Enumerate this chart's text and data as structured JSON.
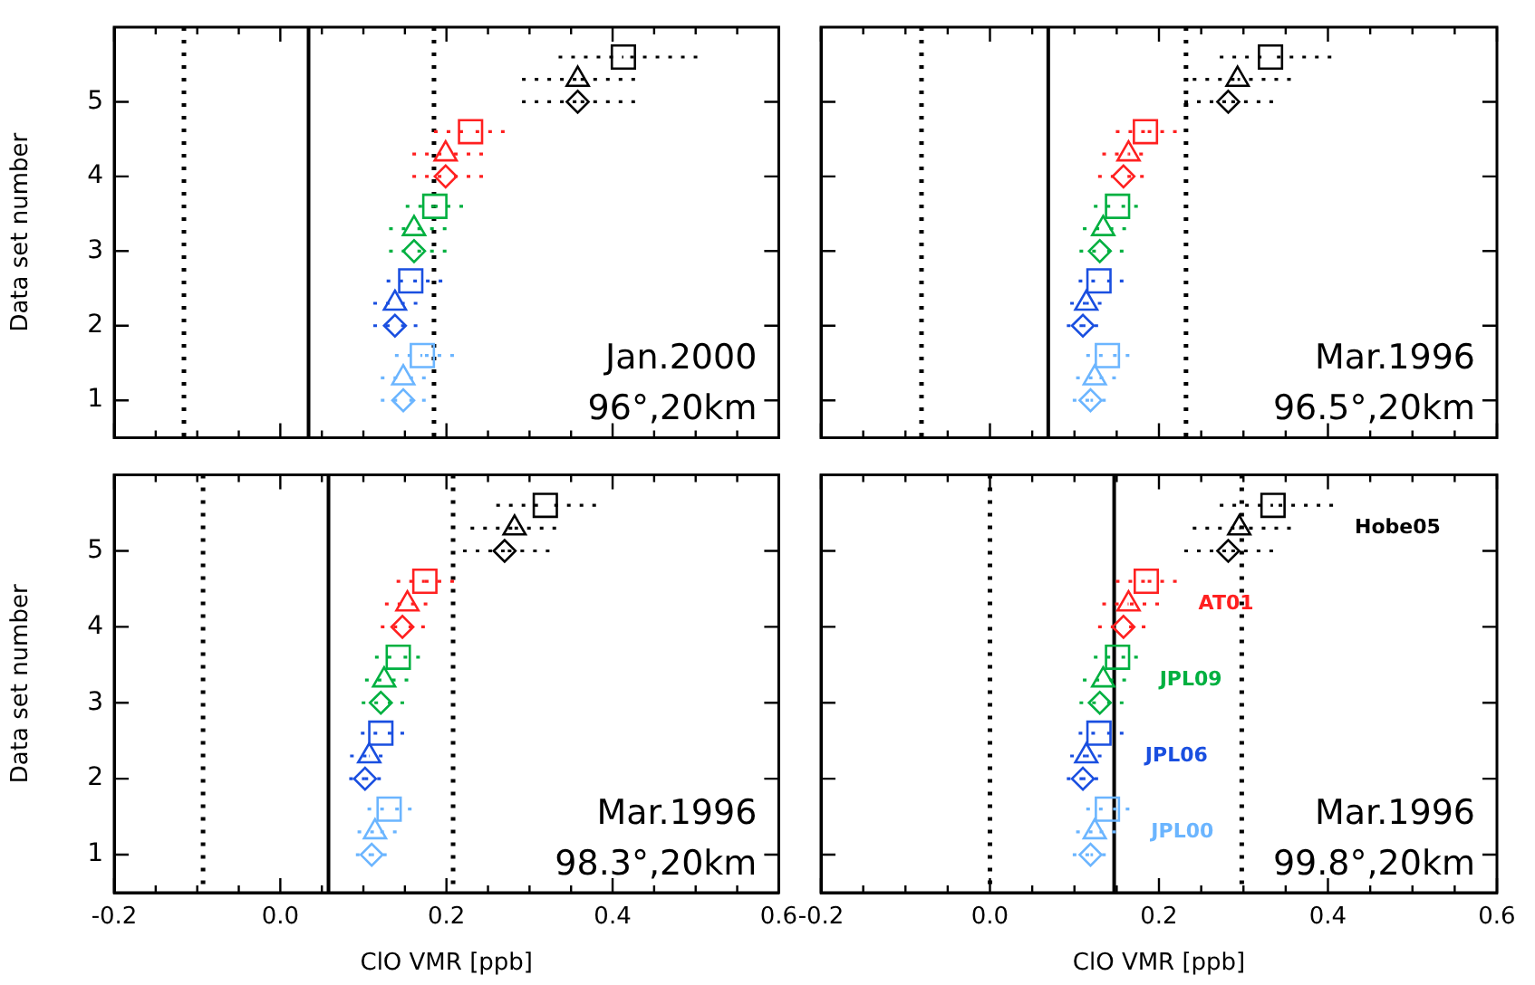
{
  "chart_data": [
    {
      "type": "scatter",
      "ylabel": "Data set number",
      "annotations": [
        "Jan.2000",
        "96°,20km"
      ],
      "tick_labels": "y",
      "xlim": [
        -0.2,
        0.6
      ],
      "xticks": [
        -0.2,
        {
          "value": -0.15,
          "label": null
        },
        {
          "value": -0.1,
          "label": null
        },
        {
          "value": -0.05,
          "label": null
        },
        0,
        {
          "value": 0.05,
          "label": null
        },
        {
          "value": 0.1,
          "label": null
        },
        {
          "value": 0.15,
          "label": null
        },
        0.2,
        {
          "value": 0.25,
          "label": null
        },
        {
          "value": 0.3,
          "label": null
        },
        {
          "value": 0.35,
          "label": null
        },
        0.4,
        {
          "value": 0.45,
          "label": null
        },
        {
          "value": 0.5,
          "label": null
        },
        {
          "value": 0.55,
          "label": null
        },
        0.6
      ],
      "ylim": [
        0.5,
        6
      ],
      "yticks": [
        1,
        2,
        3,
        4,
        5
      ],
      "ref_lines": [
        {
          "axis": "x",
          "value": 0.034,
          "color": "#000000",
          "line_style": "solid"
        },
        {
          "axis": "x",
          "value": -0.116,
          "color": "#000000",
          "line_style": "dotted"
        },
        {
          "axis": "x",
          "value": 0.185,
          "color": "#000000",
          "line_style": "dotted"
        }
      ],
      "series": [
        {
          "color": "#6bb5ff",
          "marker": [
            "diamond",
            "triangle",
            "square"
          ],
          "x": [
            0.148,
            0.148,
            0.171
          ],
          "values": [
            1,
            1.3,
            1.6
          ],
          "xerrors": [
            [
              0.121,
              0.175
            ],
            [
              0.121,
              0.175
            ],
            [
              0.138,
              0.209
            ]
          ]
        },
        {
          "color": "#1a4fe0",
          "marker": [
            "diamond",
            "triangle",
            "square"
          ],
          "x": [
            0.138,
            0.138,
            0.157
          ],
          "values": [
            2,
            2.3,
            2.6
          ],
          "xerrors": [
            [
              0.112,
              0.165
            ],
            [
              0.112,
              0.165
            ],
            [
              0.128,
              0.195
            ]
          ]
        },
        {
          "color": "#00b040",
          "marker": [
            "diamond",
            "triangle",
            "square"
          ],
          "x": [
            0.161,
            0.161,
            0.186
          ],
          "values": [
            3,
            3.3,
            3.6
          ],
          "xerrors": [
            [
              0.131,
              0.2
            ],
            [
              0.131,
              0.2
            ],
            [
              0.151,
              0.22
            ]
          ]
        },
        {
          "color": "#ff2020",
          "marker": [
            "diamond",
            "triangle",
            "square"
          ],
          "x": [
            0.199,
            0.199,
            0.229
          ],
          "values": [
            4,
            4.3,
            4.6
          ],
          "xerrors": [
            [
              0.159,
              0.244
            ],
            [
              0.159,
              0.244
            ],
            [
              0.185,
              0.27
            ]
          ]
        },
        {
          "color": "#000000",
          "marker": [
            "diamond",
            "triangle",
            "square"
          ],
          "x": [
            0.358,
            0.358,
            0.413
          ],
          "values": [
            5,
            5.3,
            5.6
          ],
          "xerrors": [
            [
              0.291,
              0.427
            ],
            [
              0.291,
              0.427
            ],
            [
              0.335,
              0.502
            ]
          ]
        }
      ]
    },
    {
      "type": "scatter",
      "annotations": [
        "Mar.1996",
        "96.5°,20km"
      ],
      "tick_labels": false,
      "xlim": [
        -0.2,
        0.6
      ],
      "xticks": [
        -0.2,
        {
          "value": -0.15,
          "label": null
        },
        {
          "value": -0.1,
          "label": null
        },
        {
          "value": -0.05,
          "label": null
        },
        0,
        {
          "value": 0.05,
          "label": null
        },
        {
          "value": 0.1,
          "label": null
        },
        {
          "value": 0.15,
          "label": null
        },
        0.2,
        {
          "value": 0.25,
          "label": null
        },
        {
          "value": 0.3,
          "label": null
        },
        {
          "value": 0.35,
          "label": null
        },
        0.4,
        {
          "value": 0.45,
          "label": null
        },
        {
          "value": 0.5,
          "label": null
        },
        {
          "value": 0.55,
          "label": null
        },
        0.6
      ],
      "ylim": [
        0.5,
        6
      ],
      "yticks": [
        1,
        2,
        3,
        4,
        5
      ],
      "ref_lines": [
        {
          "axis": "x",
          "value": 0.069,
          "color": "#000000",
          "line_style": "solid"
        },
        {
          "axis": "x",
          "value": -0.081,
          "color": "#000000",
          "line_style": "dotted"
        },
        {
          "axis": "x",
          "value": 0.232,
          "color": "#000000",
          "line_style": "dotted"
        }
      ],
      "series": [
        {
          "color": "#6bb5ff",
          "marker": [
            "diamond",
            "triangle",
            "square"
          ],
          "x": [
            0.119,
            0.124,
            0.139
          ],
          "values": [
            1,
            1.3,
            1.6
          ],
          "xerrors": [
            [
              0.098,
              0.137
            ],
            [
              0.102,
              0.149
            ],
            [
              0.114,
              0.165
            ]
          ]
        },
        {
          "color": "#1a4fe0",
          "marker": [
            "diamond",
            "triangle",
            "square"
          ],
          "x": [
            0.11,
            0.114,
            0.129
          ],
          "values": [
            2,
            2.3,
            2.6
          ],
          "xerrors": [
            [
              0.091,
              0.128
            ],
            [
              0.095,
              0.132
            ],
            [
              0.105,
              0.158
            ]
          ]
        },
        {
          "color": "#00b040",
          "marker": [
            "diamond",
            "triangle",
            "square"
          ],
          "x": [
            0.13,
            0.134,
            0.151
          ],
          "values": [
            3,
            3.3,
            3.6
          ],
          "xerrors": [
            [
              0.106,
              0.158
            ],
            [
              0.11,
              0.161
            ],
            [
              0.123,
              0.175
            ]
          ]
        },
        {
          "color": "#ff2020",
          "marker": [
            "diamond",
            "triangle",
            "square"
          ],
          "x": [
            0.158,
            0.164,
            0.184
          ],
          "values": [
            4,
            4.3,
            4.6
          ],
          "xerrors": [
            [
              0.128,
              0.182
            ],
            [
              0.133,
              0.181
            ],
            [
              0.149,
              0.221
            ]
          ]
        },
        {
          "color": "#000000",
          "marker": [
            "diamond",
            "triangle",
            "square"
          ],
          "x": [
            0.282,
            0.293,
            0.332
          ],
          "values": [
            5,
            5.3,
            5.6
          ],
          "xerrors": [
            [
              0.23,
              0.335
            ],
            [
              0.24,
              0.356
            ],
            [
              0.272,
              0.404
            ]
          ]
        }
      ]
    },
    {
      "type": "scatter",
      "xlabel": "ClO VMR [ppb]",
      "ylabel": "Data set number",
      "annotations": [
        "Mar.1996",
        "98.3°,20km"
      ],
      "xlim": [
        -0.2,
        0.6
      ],
      "xticks": [
        -0.2,
        {
          "value": -0.15,
          "label": null
        },
        {
          "value": -0.1,
          "label": null
        },
        {
          "value": -0.05,
          "label": null
        },
        {
          "value": 0,
          "label": "0.0"
        },
        {
          "value": 0.05,
          "label": null
        },
        {
          "value": 0.1,
          "label": null
        },
        {
          "value": 0.15,
          "label": null
        },
        0.2,
        {
          "value": 0.25,
          "label": null
        },
        {
          "value": 0.3,
          "label": null
        },
        {
          "value": 0.35,
          "label": null
        },
        0.4,
        {
          "value": 0.45,
          "label": null
        },
        {
          "value": 0.5,
          "label": null
        },
        {
          "value": 0.55,
          "label": null
        },
        0.6
      ],
      "ylim": [
        0.5,
        6
      ],
      "yticks": [
        1,
        2,
        3,
        4,
        5
      ],
      "ref_lines": [
        {
          "axis": "x",
          "value": 0.058,
          "color": "#000000",
          "line_style": "solid"
        },
        {
          "axis": "x",
          "value": -0.093,
          "color": "#000000",
          "line_style": "dotted"
        },
        {
          "axis": "x",
          "value": 0.208,
          "color": "#000000",
          "line_style": "dotted"
        }
      ],
      "series": [
        {
          "color": "#6bb5ff",
          "marker": [
            "diamond",
            "triangle",
            "square"
          ],
          "x": [
            0.11,
            0.114,
            0.131
          ],
          "values": [
            1,
            1.3,
            1.6
          ],
          "xerrors": [
            [
              0.091,
              0.128
            ],
            [
              0.093,
              0.14
            ],
            [
              0.105,
              0.158
            ]
          ]
        },
        {
          "color": "#1a4fe0",
          "marker": [
            "diamond",
            "triangle",
            "square"
          ],
          "x": [
            0.102,
            0.107,
            0.121
          ],
          "values": [
            2,
            2.3,
            2.6
          ],
          "xerrors": [
            [
              0.083,
              0.121
            ],
            [
              0.084,
              0.123
            ],
            [
              0.097,
              0.149
            ]
          ]
        },
        {
          "color": "#00b040",
          "marker": [
            "diamond",
            "triangle",
            "square"
          ],
          "x": [
            0.121,
            0.125,
            0.142
          ],
          "values": [
            3,
            3.3,
            3.6
          ],
          "xerrors": [
            [
              0.098,
              0.149
            ],
            [
              0.102,
              0.154
            ],
            [
              0.114,
              0.168
            ]
          ]
        },
        {
          "color": "#ff2020",
          "marker": [
            "diamond",
            "triangle",
            "square"
          ],
          "x": [
            0.147,
            0.153,
            0.174
          ],
          "values": [
            4,
            4.3,
            4.6
          ],
          "xerrors": [
            [
              0.121,
              0.174
            ],
            [
              0.126,
              0.177
            ],
            [
              0.14,
              0.209
            ]
          ]
        },
        {
          "color": "#000000",
          "marker": [
            "diamond",
            "triangle",
            "square"
          ],
          "x": [
            0.27,
            0.282,
            0.319
          ],
          "values": [
            5,
            5.3,
            5.6
          ],
          "xerrors": [
            [
              0.22,
              0.324
            ],
            [
              0.229,
              0.332
            ],
            [
              0.26,
              0.38
            ]
          ]
        }
      ]
    },
    {
      "type": "scatter",
      "xlabel": "ClO VMR [ppb]",
      "annotations": [
        "Mar.1996",
        "99.8°,20km"
      ],
      "tick_labels": "x",
      "xlim": [
        -0.2,
        0.6
      ],
      "xticks": [
        -0.2,
        {
          "value": -0.15,
          "label": null
        },
        {
          "value": -0.1,
          "label": null
        },
        {
          "value": -0.05,
          "label": null
        },
        {
          "value": 0,
          "label": "0.0"
        },
        {
          "value": 0.05,
          "label": null
        },
        {
          "value": 0.1,
          "label": null
        },
        {
          "value": 0.15,
          "label": null
        },
        0.2,
        {
          "value": 0.25,
          "label": null
        },
        {
          "value": 0.3,
          "label": null
        },
        {
          "value": 0.35,
          "label": null
        },
        0.4,
        {
          "value": 0.45,
          "label": null
        },
        {
          "value": 0.5,
          "label": null
        },
        {
          "value": 0.55,
          "label": null
        },
        0.6
      ],
      "ylim": [
        0.5,
        6
      ],
      "yticks": [
        1,
        2,
        3,
        4,
        5
      ],
      "ref_lines": [
        {
          "axis": "x",
          "value": 0.147,
          "color": "#000000",
          "line_style": "solid"
        },
        {
          "axis": "x",
          "value": 0,
          "color": "#000000",
          "line_style": "dotted"
        },
        {
          "axis": "x",
          "value": 0.298,
          "color": "#000000",
          "line_style": "dotted"
        }
      ],
      "series": [
        {
          "name": "JPL00",
          "color": "#6bb5ff",
          "marker": [
            "diamond",
            "triangle",
            "square"
          ],
          "x": [
            0.119,
            0.124,
            0.139
          ],
          "values": [
            1,
            1.3,
            1.6
          ],
          "xerrors": [
            [
              0.098,
              0.137
            ],
            [
              0.102,
              0.149
            ],
            [
              0.114,
              0.165
            ]
          ]
        },
        {
          "name": "JPL06",
          "color": "#1a4fe0",
          "marker": [
            "diamond",
            "triangle",
            "square"
          ],
          "x": [
            0.11,
            0.114,
            0.129
          ],
          "values": [
            2,
            2.3,
            2.6
          ],
          "xerrors": [
            [
              0.091,
              0.128
            ],
            [
              0.095,
              0.132
            ],
            [
              0.105,
              0.158
            ]
          ]
        },
        {
          "name": "JPL09",
          "color": "#00b040",
          "marker": [
            "diamond",
            "triangle",
            "square"
          ],
          "x": [
            0.13,
            0.134,
            0.151
          ],
          "values": [
            3,
            3.3,
            3.6
          ],
          "xerrors": [
            [
              0.106,
              0.158
            ],
            [
              0.11,
              0.161
            ],
            [
              0.123,
              0.175
            ]
          ]
        },
        {
          "name": "AT01",
          "color": "#ff2020",
          "marker": [
            "diamond",
            "triangle",
            "square"
          ],
          "x": [
            0.158,
            0.164,
            0.185
          ],
          "values": [
            4,
            4.3,
            4.6
          ],
          "xerrors": [
            [
              0.128,
              0.184
            ],
            [
              0.133,
              0.2
            ],
            [
              0.149,
              0.221
            ]
          ]
        },
        {
          "name": "Hobe05",
          "color": "#000000",
          "marker": [
            "diamond",
            "triangle",
            "square"
          ],
          "x": [
            0.282,
            0.295,
            0.335
          ],
          "values": [
            5,
            5.3,
            5.6
          ],
          "xerrors": [
            [
              0.23,
              0.335
            ],
            [
              0.24,
              0.356
            ],
            [
              0.272,
              0.406
            ]
          ]
        }
      ]
    }
  ]
}
